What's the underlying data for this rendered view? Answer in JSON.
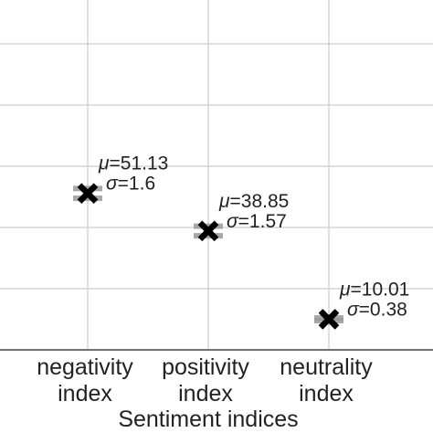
{
  "chart_data": {
    "type": "scatter",
    "title": "",
    "xlabel": "Sentiment indices",
    "ylabel": "",
    "categories": [
      [
        "negativity",
        "index"
      ],
      [
        "positivity",
        "index"
      ],
      [
        "neutrality",
        "index"
      ]
    ],
    "series": [
      {
        "values": [
          51.13,
          38.85,
          10.01
        ],
        "std": [
          1.6,
          1.57,
          0.38
        ],
        "marker": "X",
        "marker_color": "#000000",
        "errorbar_color": "#999999"
      }
    ],
    "annotations": [
      {
        "mu_symbol": "μ",
        "mu_value": "=51.13",
        "sigma_symbol": "σ",
        "sigma_value": "=1.6"
      },
      {
        "mu_symbol": "μ",
        "mu_value": "=38.85",
        "sigma_symbol": "σ",
        "sigma_value": "=1.57"
      },
      {
        "mu_symbol": "μ",
        "mu_value": "=10.01",
        "sigma_symbol": "σ",
        "sigma_value": "=0.38"
      }
    ],
    "ylim": [
      0,
      100
    ],
    "grid": true,
    "grid_color": "#cccccc",
    "axis_color": "#444444"
  }
}
